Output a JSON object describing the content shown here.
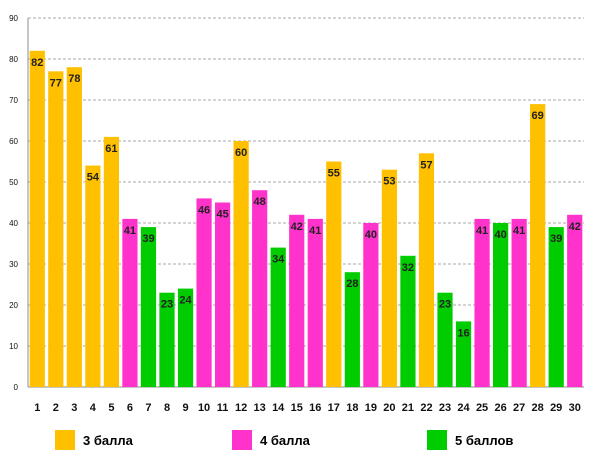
{
  "chart_data": {
    "type": "bar",
    "categories": [
      "1",
      "2",
      "3",
      "4",
      "5",
      "6",
      "7",
      "8",
      "9",
      "10",
      "11",
      "12",
      "13",
      "14",
      "15",
      "16",
      "17",
      "18",
      "19",
      "20",
      "21",
      "22",
      "23",
      "24",
      "25",
      "26",
      "27",
      "28",
      "29",
      "30"
    ],
    "values": [
      82,
      77,
      78,
      54,
      61,
      41,
      39,
      23,
      24,
      46,
      45,
      60,
      48,
      34,
      42,
      41,
      55,
      28,
      40,
      53,
      32,
      57,
      23,
      16,
      41,
      40,
      41,
      69,
      39,
      42
    ],
    "groups": [
      "3 балла",
      "3 балла",
      "3 балла",
      "3 балла",
      "3 балла",
      "4 балла",
      "5 баллов",
      "5 баллов",
      "5 баллов",
      "4 балла",
      "4 балла",
      "3 балла",
      "4 балла",
      "5 баллов",
      "4 балла",
      "4 балла",
      "3 балла",
      "5 баллов",
      "4 балла",
      "3 балла",
      "5 баллов",
      "3 балла",
      "5 баллов",
      "5 баллов",
      "4 балла",
      "5 баллов",
      "4 балла",
      "3 балла",
      "5 баллов",
      "4 балла"
    ],
    "ylim": [
      0,
      90
    ],
    "yticks": [
      0,
      10,
      20,
      30,
      40,
      50,
      60,
      70,
      80,
      90
    ],
    "grid": true,
    "grid_style": "dashed",
    "data_labels": true,
    "legend_position": "bottom",
    "legend": [
      {
        "label": "3 балла",
        "color": "#FFC000"
      },
      {
        "label": "4 балла",
        "color": "#FF33CC"
      },
      {
        "label": "5 баллов",
        "color": "#00CC00"
      }
    ],
    "title": "",
    "xlabel": "",
    "ylabel": ""
  }
}
